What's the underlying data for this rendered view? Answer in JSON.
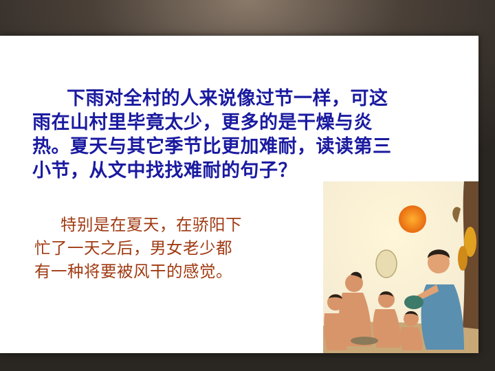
{
  "question": {
    "lines": [
      "下雨对全村的人来说像过节一样，可这",
      "雨在山村里毕竟太少，更多的是干燥与炎",
      "热。夏天与其它季节比更加难耐，读读第三",
      "小节，从文中找找难耐的句子？"
    ]
  },
  "answer": {
    "lines": [
      "特别是在夏天，在骄阳下",
      "忙了一天之后，男女老少都",
      "有一种将要被风干的感觉。"
    ]
  },
  "colors": {
    "question_text": "#1a1aa0",
    "answer_text": "#a03a12",
    "slide_bg": "#ffffff",
    "frame_bg": "#4a4038"
  }
}
